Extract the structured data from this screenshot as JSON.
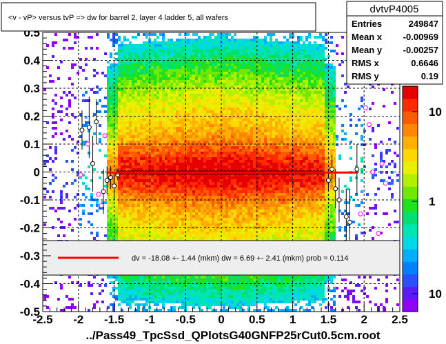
{
  "chart_data": {
    "type": "heatmap",
    "title": "<v - vP>       versus  tvP =>  dw for barrel 2, layer 4 ladder 5, all wafers",
    "xlabel": "../Pass49_TpcSsd_QPlotsG40GNFP25rCut0.5cm.root",
    "ylabel": "",
    "xlim": [
      -2.5,
      2.5
    ],
    "ylim": [
      -0.5,
      0.5
    ],
    "x_ticks": [
      "-2.5",
      "-2",
      "-1.5",
      "-1",
      "-0.5",
      "0",
      "0.5",
      "1",
      "1.5",
      "2",
      "2.5"
    ],
    "y_ticks": [
      "-0.5",
      "-0.4",
      "-0.3",
      "-0.2",
      "-0.1",
      "0",
      "0.1",
      "0.2",
      "0.3",
      "0.4",
      "0.5"
    ],
    "grid": true,
    "stats": {
      "name": "dvtvP4005",
      "rows": [
        {
          "label": "Entries",
          "value": "249847"
        },
        {
          "label": "Mean x",
          "value": "-0.00969"
        },
        {
          "label": "Mean y",
          "value": "-0.00257"
        },
        {
          "label": "RMS x",
          "value": "0.6646"
        },
        {
          "label": "RMS y",
          "value": "0.19"
        }
      ]
    },
    "fit_legend": "dv =  -18.08 +-  1.44 (mkm) dw =    6.69 +-  2.41 (mkm) prob = 0.114",
    "colorbar_ticks": [
      "10",
      "1",
      "10"
    ],
    "profile_points": [
      {
        "x": -1.95,
        "y": 0.15,
        "err": 0.07
      },
      {
        "x": -1.85,
        "y": 0.16,
        "err": 0.11
      },
      {
        "x": -1.8,
        "y": 0.03,
        "err": 0.1
      },
      {
        "x": -1.75,
        "y": 0.18,
        "err": 0.08
      },
      {
        "x": -1.65,
        "y": -0.07,
        "err": 0.08
      },
      {
        "x": -1.6,
        "y": -0.03,
        "err": 0.05
      },
      {
        "x": -1.55,
        "y": -0.02,
        "err": 0.04
      },
      {
        "x": -1.5,
        "y": -0.05,
        "err": 0.05
      },
      {
        "x": -1.45,
        "y": -0.01,
        "err": 0.02
      },
      {
        "x": 1.5,
        "y": -0.03,
        "err": 0.04
      },
      {
        "x": 1.55,
        "y": 0.01,
        "err": 0.05
      },
      {
        "x": 1.6,
        "y": -0.06,
        "err": 0.07
      },
      {
        "x": 1.65,
        "y": -0.1,
        "err": 0.08
      },
      {
        "x": 1.75,
        "y": -0.16,
        "err": 0.1
      },
      {
        "x": 1.8,
        "y": -0.18,
        "err": 0.12
      },
      {
        "x": 1.9,
        "y": 0.01,
        "err": 0.09
      }
    ],
    "outlier_points": [
      {
        "x": -1.97,
        "y": -0.01
      },
      {
        "x": -1.87,
        "y": 0.1
      },
      {
        "x": -1.72,
        "y": -0.08
      },
      {
        "x": -1.68,
        "y": -0.12
      },
      {
        "x": -1.63,
        "y": 0.13
      },
      {
        "x": 1.82,
        "y": 0.33
      },
      {
        "x": 1.95,
        "y": -0.15
      },
      {
        "x": 2.02,
        "y": 0.23
      },
      {
        "x": 2.07,
        "y": 0.17
      },
      {
        "x": 2.12,
        "y": 0.0
      },
      {
        "x": 2.2,
        "y": -0.22
      },
      {
        "x": 2.25,
        "y": 0.03
      },
      {
        "x": 2.3,
        "y": -0.04
      },
      {
        "x": 1.92,
        "y": 0.35
      }
    ],
    "fit_line": {
      "x": [
        -1.6,
        1.9
      ],
      "y": [
        -0.00181,
        -0.00181
      ]
    },
    "colors": {
      "fit": "#ff0000",
      "markers": "#ff00ff",
      "frame": "#000000"
    }
  }
}
